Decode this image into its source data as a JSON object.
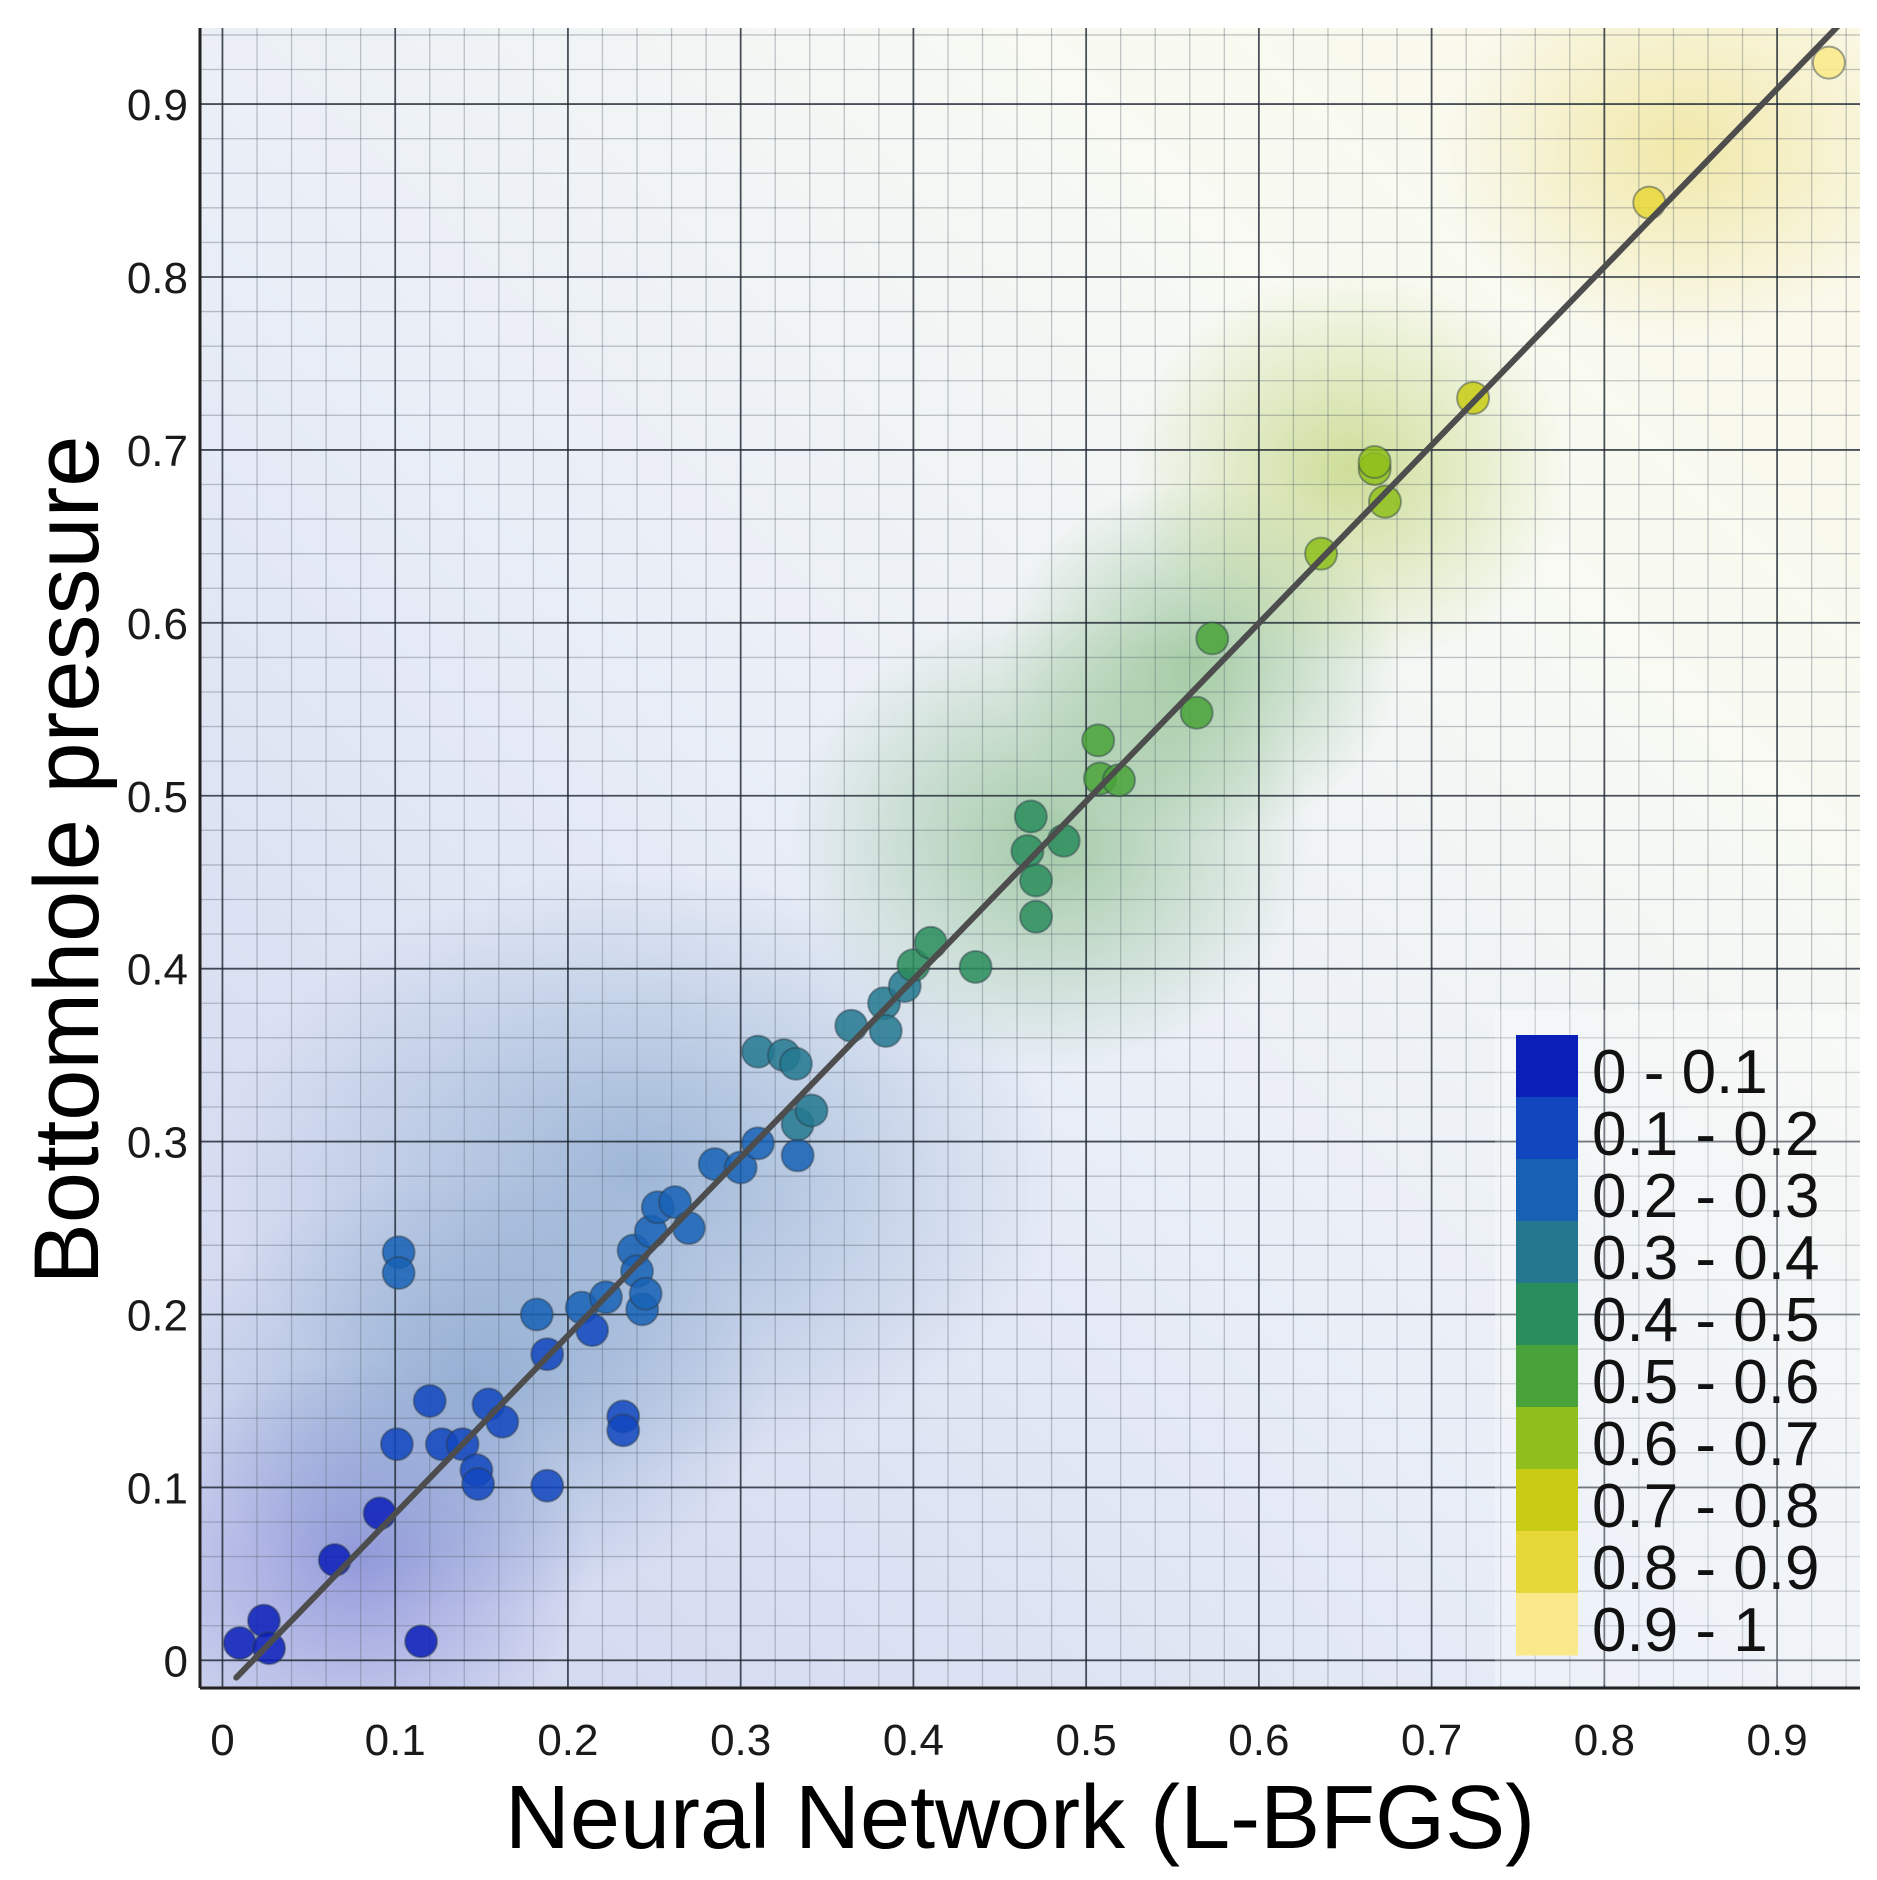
{
  "chart_data": {
    "type": "scatter",
    "xlabel": "Neural Network (L-BFGS)",
    "ylabel": "Bottomhole pressure",
    "xlim": [
      -0.013,
      0.948
    ],
    "ylim": [
      -0.016,
      0.944
    ],
    "xticks": [
      0,
      0.1,
      0.2,
      0.3,
      0.4,
      0.5,
      0.6,
      0.7,
      0.8,
      0.9
    ],
    "yticks": [
      0,
      0.1,
      0.2,
      0.3,
      0.4,
      0.5,
      0.6,
      0.7,
      0.8,
      0.9
    ],
    "xtick_labels": [
      "0",
      "0.1",
      "0.2",
      "0.3",
      "0.4",
      "0.5",
      "0.6",
      "0.7",
      "0.8",
      "0.9"
    ],
    "ytick_labels": [
      "0",
      "0.1",
      "0.2",
      "0.3",
      "0.4",
      "0.5",
      "0.6",
      "0.7",
      "0.8",
      "0.9"
    ],
    "grid": true,
    "fit_line": {
      "x": [
        0.008,
        0.94
      ],
      "y": [
        -0.01,
        0.95
      ],
      "color": "#4d4d4d"
    },
    "legend": {
      "position": "bottom-right",
      "entries": [
        {
          "label": "0 - 0.1",
          "color": "#0a1fb8"
        },
        {
          "label": "0.1 - 0.2",
          "color": "#1246be"
        },
        {
          "label": "0.2 - 0.3",
          "color": "#1761b5"
        },
        {
          "label": "0.3 - 0.4",
          "color": "#23788f"
        },
        {
          "label": "0.4 - 0.5",
          "color": "#2a8d5c"
        },
        {
          "label": "0.5 - 0.6",
          "color": "#4aa33a"
        },
        {
          "label": "0.6 - 0.7",
          "color": "#8fbf1c"
        },
        {
          "label": "0.7 - 0.8",
          "color": "#c9cc14"
        },
        {
          "label": "0.8 - 0.9",
          "color": "#e7d83a"
        },
        {
          "label": "0.9 - 1",
          "color": "#fae98a"
        }
      ]
    },
    "points": [
      [
        0.01,
        0.01
      ],
      [
        0.024,
        0.023
      ],
      [
        0.027,
        0.007
      ],
      [
        0.115,
        0.011
      ],
      [
        0.065,
        0.058
      ],
      [
        0.091,
        0.085
      ],
      [
        0.101,
        0.125
      ],
      [
        0.12,
        0.15
      ],
      [
        0.127,
        0.125
      ],
      [
        0.139,
        0.125
      ],
      [
        0.147,
        0.11
      ],
      [
        0.148,
        0.102
      ],
      [
        0.154,
        0.148
      ],
      [
        0.162,
        0.138
      ],
      [
        0.188,
        0.101
      ],
      [
        0.182,
        0.2
      ],
      [
        0.188,
        0.177
      ],
      [
        0.102,
        0.236
      ],
      [
        0.102,
        0.224
      ],
      [
        0.208,
        0.204
      ],
      [
        0.214,
        0.191
      ],
      [
        0.222,
        0.21
      ],
      [
        0.232,
        0.141
      ],
      [
        0.232,
        0.133
      ],
      [
        0.238,
        0.237
      ],
      [
        0.24,
        0.225
      ],
      [
        0.243,
        0.203
      ],
      [
        0.245,
        0.212
      ],
      [
        0.248,
        0.248
      ],
      [
        0.252,
        0.262
      ],
      [
        0.262,
        0.265
      ],
      [
        0.27,
        0.25
      ],
      [
        0.285,
        0.287
      ],
      [
        0.3,
        0.285
      ],
      [
        0.31,
        0.299
      ],
      [
        0.31,
        0.352
      ],
      [
        0.325,
        0.35
      ],
      [
        0.332,
        0.345
      ],
      [
        0.333,
        0.292
      ],
      [
        0.333,
        0.31
      ],
      [
        0.341,
        0.318
      ],
      [
        0.364,
        0.367
      ],
      [
        0.383,
        0.38
      ],
      [
        0.384,
        0.364
      ],
      [
        0.395,
        0.39
      ],
      [
        0.4,
        0.402
      ],
      [
        0.41,
        0.415
      ],
      [
        0.436,
        0.401
      ],
      [
        0.466,
        0.468
      ],
      [
        0.468,
        0.488
      ],
      [
        0.471,
        0.451
      ],
      [
        0.471,
        0.43
      ],
      [
        0.487,
        0.474
      ],
      [
        0.507,
        0.532
      ],
      [
        0.508,
        0.51
      ],
      [
        0.519,
        0.509
      ],
      [
        0.564,
        0.548
      ],
      [
        0.573,
        0.591
      ],
      [
        0.636,
        0.64
      ],
      [
        0.667,
        0.689
      ],
      [
        0.667,
        0.693
      ],
      [
        0.673,
        0.67
      ],
      [
        0.724,
        0.73
      ],
      [
        0.826,
        0.843
      ],
      [
        0.93,
        0.924
      ]
    ]
  }
}
